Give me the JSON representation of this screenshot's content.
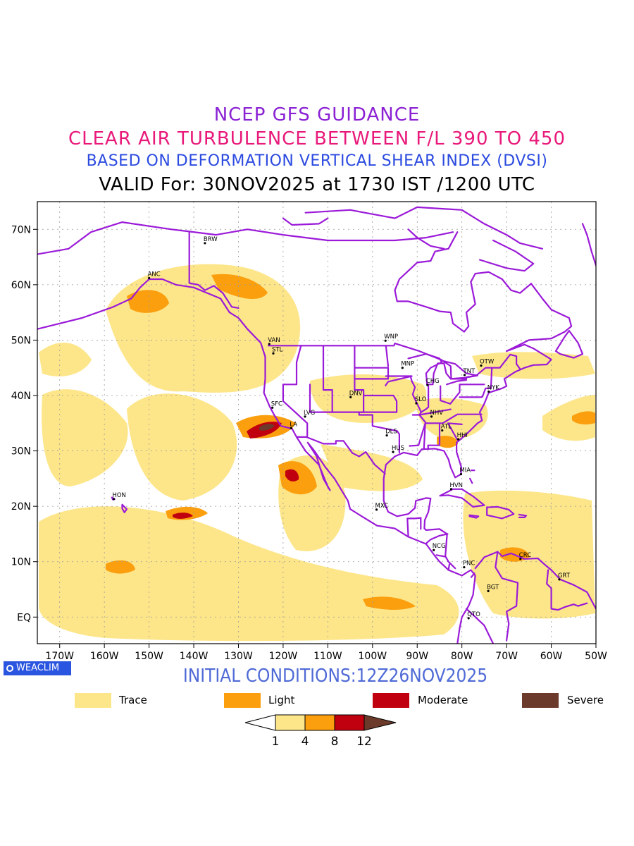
{
  "title": {
    "line1": "NCEP GFS GUIDANCE",
    "line2": "CLEAR AIR TURBULENCE BETWEEN F/L 390 TO 450",
    "line3": "BASED ON DEFORMATION VERTICAL SHEAR INDEX (DVSI)",
    "line4": "VALID For: 30NOV2025 at 1730 IST /1200 UTC"
  },
  "colors": {
    "line1": "#8b22d4",
    "line2": "#e8197a",
    "line3": "#2b4ae0",
    "line4": "#000000",
    "init": "#4f6ad6",
    "coast": "#9b1ad8",
    "trace": "#fde68a",
    "light": "#fb9f0e",
    "moderate": "#c0000f",
    "severe": "#6b3a2a"
  },
  "map": {
    "lat_labels": [
      "70N",
      "60N",
      "50N",
      "40N",
      "30N",
      "20N",
      "10N",
      "EQ"
    ],
    "lon_labels": [
      "170W",
      "160W",
      "150W",
      "140W",
      "130W",
      "120W",
      "110W",
      "100W",
      "90W",
      "80W",
      "70W",
      "60W",
      "50W"
    ],
    "stations": [
      {
        "name": "ANC",
        "lon": -150.0,
        "lat": 61.2
      },
      {
        "name": "BRW",
        "lon": -137.5,
        "lat": 67.5
      },
      {
        "name": "VAN",
        "lon": -123.1,
        "lat": 49.3
      },
      {
        "name": "STL",
        "lon": -122.2,
        "lat": 47.6
      },
      {
        "name": "WNP",
        "lon": -97.1,
        "lat": 49.9
      },
      {
        "name": "MNP",
        "lon": -93.3,
        "lat": 45.0
      },
      {
        "name": "CHG",
        "lon": -87.7,
        "lat": 41.9
      },
      {
        "name": "TNT",
        "lon": -79.4,
        "lat": 43.7
      },
      {
        "name": "OTW",
        "lon": -75.7,
        "lat": 45.4
      },
      {
        "name": "NYK",
        "lon": -74.0,
        "lat": 40.7
      },
      {
        "name": "SFC",
        "lon": -122.4,
        "lat": 37.8
      },
      {
        "name": "LVG",
        "lon": -115.1,
        "lat": 36.2
      },
      {
        "name": "LA",
        "lon": -118.2,
        "lat": 34.1
      },
      {
        "name": "DNV",
        "lon": -104.9,
        "lat": 39.7
      },
      {
        "name": "SLO",
        "lon": -90.2,
        "lat": 38.6
      },
      {
        "name": "NHV",
        "lon": -86.8,
        "lat": 36.2
      },
      {
        "name": "ATL",
        "lon": -84.4,
        "lat": 33.7
      },
      {
        "name": "HHI",
        "lon": -80.8,
        "lat": 32.1
      },
      {
        "name": "DLS",
        "lon": -96.8,
        "lat": 32.8
      },
      {
        "name": "HUS",
        "lon": -95.4,
        "lat": 29.8
      },
      {
        "name": "MIA",
        "lon": -80.2,
        "lat": 25.8
      },
      {
        "name": "HVN",
        "lon": -82.4,
        "lat": 23.1
      },
      {
        "name": "MXC",
        "lon": -99.1,
        "lat": 19.4
      },
      {
        "name": "HON",
        "lon": -157.9,
        "lat": 21.3
      },
      {
        "name": "NCG",
        "lon": -86.3,
        "lat": 12.1
      },
      {
        "name": "PNC",
        "lon": -79.5,
        "lat": 9.0
      },
      {
        "name": "BGT",
        "lon": -74.1,
        "lat": 4.7
      },
      {
        "name": "CRC",
        "lon": -66.9,
        "lat": 10.5
      },
      {
        "name": "GRT",
        "lon": -58.2,
        "lat": 6.8
      },
      {
        "name": "QTO",
        "lon": -78.5,
        "lat": -0.2
      }
    ]
  },
  "badge": {
    "label": "WEACLIM"
  },
  "initial_conditions": "INITIAL CONDITIONS:12Z26NOV2025",
  "legend": [
    {
      "label": "Trace",
      "color": "#fde68a"
    },
    {
      "label": "Light",
      "color": "#fb9f0e"
    },
    {
      "label": "Moderate",
      "color": "#c0000f"
    },
    {
      "label": "Severe",
      "color": "#6b3a2a"
    }
  ],
  "colorbar": {
    "ticks": [
      "1",
      "4",
      "8",
      "12"
    ]
  }
}
